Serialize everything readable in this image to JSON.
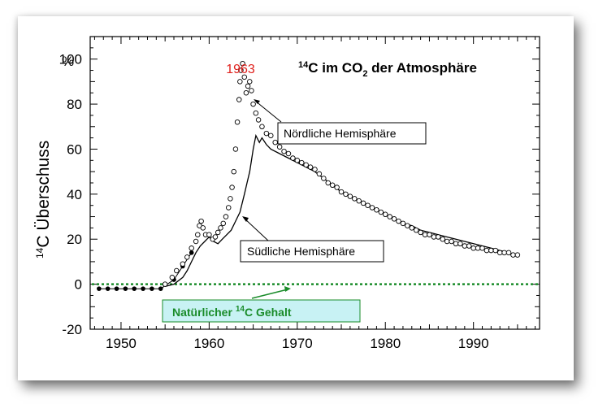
{
  "chart_data": {
    "type": "scatter",
    "title_parts": {
      "sup": "14",
      "pre": "C im CO",
      "sub": "2",
      "post": " der Atmosphäre"
    },
    "ylabel_parts": {
      "sup": "14",
      "text": "C Überschuss"
    },
    "yunit": "%",
    "xlim": [
      1946.5,
      1997.5
    ],
    "ylim": [
      -20,
      110
    ],
    "xticks": [
      "1950",
      "1960",
      "1970",
      "1980",
      "1990"
    ],
    "yticks": [
      "-20",
      "0",
      "20",
      "40",
      "60",
      "80",
      "100"
    ],
    "peak_label": "1963",
    "colors": {
      "peak_label": "#e0201c",
      "baseline": "#1a8c2a",
      "baseline_label_text": "#1a8c2a",
      "baseline_label_bg": "#c8f2f4"
    },
    "annotations": {
      "north": "Nördliche Hemisphäre",
      "south": "Südliche Hemisphäre",
      "baseline_label": {
        "pre": "Natürlicher ",
        "sup": "14",
        "post": "C Gehalt"
      }
    },
    "series": [
      {
        "name": "Nördliche Hemisphäre",
        "x": [
          1955.0,
          1955.8,
          1956.3,
          1957.0,
          1957.5,
          1958.0,
          1958.5,
          1958.7,
          1958.9,
          1959.1,
          1959.3,
          1959.6,
          1960.0,
          1960.4,
          1960.7,
          1961.0,
          1961.3,
          1961.6,
          1961.9,
          1962.2,
          1962.4,
          1962.6,
          1962.8,
          1963.0,
          1963.2,
          1963.4,
          1963.5,
          1963.6,
          1963.8,
          1964.0,
          1964.2,
          1964.4,
          1964.6,
          1964.8,
          1965.0,
          1965.3,
          1965.6,
          1966.0,
          1966.5,
          1967.0,
          1967.5,
          1968.0,
          1968.5,
          1969.0,
          1969.5,
          1970.0,
          1970.5,
          1971.0,
          1971.5,
          1972.0,
          1972.5,
          1973.0,
          1973.5,
          1974.0,
          1974.5,
          1975.0,
          1975.5,
          1976.0,
          1976.5,
          1977.0,
          1977.5,
          1978.0,
          1978.5,
          1979.0,
          1979.5,
          1980.0,
          1980.5,
          1981.0,
          1981.5,
          1982.0,
          1982.5,
          1983.0,
          1983.5,
          1984.0,
          1984.5,
          1985.0,
          1985.5,
          1986.0,
          1986.5,
          1987.0,
          1987.5,
          1988.0,
          1988.5,
          1989.0,
          1989.5,
          1990.0,
          1990.5,
          1991.0,
          1991.5,
          1992.0,
          1992.5,
          1993.0,
          1993.5,
          1994.0,
          1994.5,
          1995.0
        ],
        "y": [
          0,
          3,
          6,
          9,
          12,
          16,
          19,
          22,
          26,
          28,
          25,
          22,
          22,
          20,
          21,
          23,
          25,
          27,
          30,
          34,
          38,
          43,
          50,
          60,
          72,
          82,
          90,
          95,
          98,
          92,
          85,
          88,
          90,
          86,
          80,
          76,
          73,
          70,
          67,
          66,
          63,
          61,
          59,
          58,
          56,
          55,
          54,
          53,
          52,
          51,
          49,
          47,
          45,
          44,
          43,
          41,
          40,
          39,
          38,
          37,
          36,
          35,
          34,
          33,
          32,
          31,
          30,
          29,
          28,
          27,
          26,
          25,
          24,
          23,
          22,
          22,
          21,
          21,
          20,
          19,
          19,
          18,
          18,
          17,
          17,
          16,
          16,
          16,
          15,
          15,
          15,
          14,
          14,
          14,
          13,
          13
        ]
      },
      {
        "name": "Südliche Hemisphäre",
        "x": [
          1955.0,
          1956.0,
          1957.0,
          1957.5,
          1958.0,
          1958.5,
          1959.0,
          1959.5,
          1960.0,
          1960.5,
          1961.0,
          1961.5,
          1962.0,
          1962.5,
          1963.0,
          1963.5,
          1964.0,
          1964.3,
          1964.6,
          1965.0,
          1965.3,
          1965.7,
          1966.0,
          1966.5,
          1967.0,
          1968.0,
          1969.0,
          1970.0,
          1971.0,
          1972.0,
          1973.0,
          1974.0,
          1975.0,
          1976.0,
          1977.0,
          1978.0,
          1979.0,
          1980.0,
          1981.0,
          1982.0,
          1983.0,
          1984.0,
          1985.0,
          1986.0,
          1987.0,
          1988.0,
          1989.0,
          1990.0,
          1991.0,
          1992.0,
          1993.0,
          1994.0,
          1995.0
        ],
        "y": [
          -1,
          0,
          3,
          6,
          10,
          14,
          17,
          19,
          21,
          19,
          18,
          20,
          22,
          24,
          28,
          32,
          40,
          45,
          50,
          60,
          66,
          63,
          65,
          62,
          60,
          58,
          56,
          54,
          52,
          50,
          47,
          44,
          41,
          39,
          37,
          35,
          33,
          31,
          29,
          27,
          26,
          24,
          23,
          22,
          21,
          20,
          19,
          18,
          17,
          16,
          15,
          14,
          13
        ]
      },
      {
        "name": "",
        "x": [
          1947.5,
          1948.5,
          1949.5,
          1950.5,
          1951.5,
          1952.5,
          1953.5,
          1954.5,
          1956.0,
          1957.0,
          1958.0
        ],
        "y": [
          -2,
          -2,
          -2,
          -2,
          -2,
          -2,
          -2,
          -2,
          2,
          8,
          14
        ]
      }
    ]
  }
}
